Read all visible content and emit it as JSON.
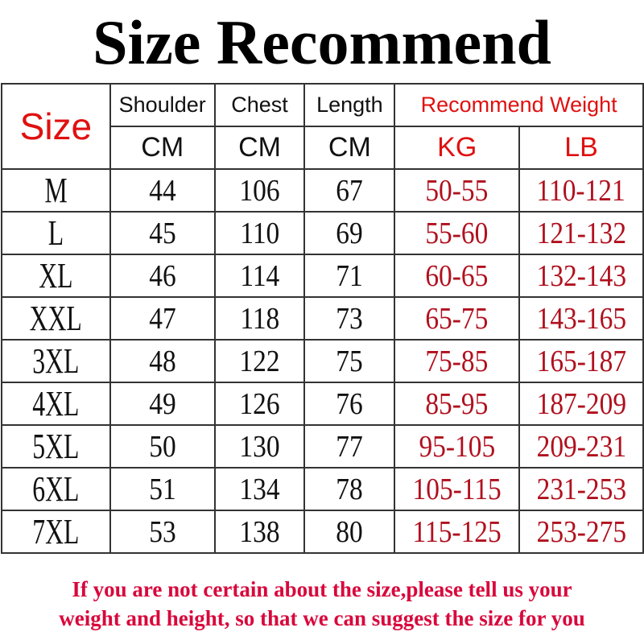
{
  "title": "Size Recommend",
  "header": {
    "size": "Size",
    "shoulder": "Shoulder",
    "chest": "Chest",
    "length": "Length",
    "recommend_weight": "Recommend Weight",
    "units": [
      "CM",
      "CM",
      "CM",
      "KG",
      "LB"
    ]
  },
  "rows": [
    [
      "M",
      "44",
      "106",
      "67",
      "50-55",
      "110-121"
    ],
    [
      "L",
      "45",
      "110",
      "69",
      "55-60",
      "121-132"
    ],
    [
      "XL",
      "46",
      "114",
      "71",
      "60-65",
      "132-143"
    ],
    [
      "XXL",
      "47",
      "118",
      "73",
      "65-75",
      "143-165"
    ],
    [
      "3XL",
      "48",
      "122",
      "75",
      "75-85",
      "165-187"
    ],
    [
      "4XL",
      "49",
      "126",
      "76",
      "85-95",
      "187-209"
    ],
    [
      "5XL",
      "50",
      "130",
      "77",
      "95-105",
      "209-231"
    ],
    [
      "6XL",
      "51",
      "134",
      "78",
      "105-115",
      "231-253"
    ],
    [
      "7XL",
      "53",
      "138",
      "80",
      "115-125",
      "253-275"
    ]
  ],
  "footer": {
    "line1": "If you are not certain about the size,please tell us your",
    "line2": "weight and height, so that we can suggest the size for you"
  },
  "colors": {
    "header_red": "#e01010",
    "weight_red": "#b0101e",
    "footer_red": "#d8083c"
  }
}
